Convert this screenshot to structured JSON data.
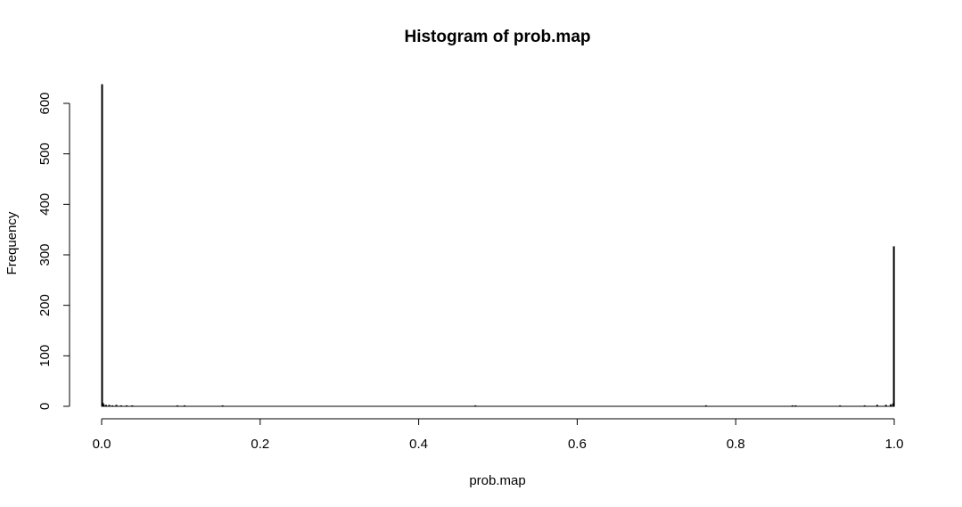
{
  "chart_data": {
    "type": "bar",
    "title": "Histogram of prob.map",
    "xlabel": "prob.map",
    "ylabel": "Frequency",
    "xlim": [
      0,
      1
    ],
    "ylim": [
      0,
      640
    ],
    "x_ticks": [
      "0.0",
      "0.2",
      "0.4",
      "0.6",
      "0.8",
      "1.0"
    ],
    "x_tick_values": [
      0,
      0.2,
      0.4,
      0.6,
      0.8,
      1.0
    ],
    "y_ticks": [
      "0",
      "100",
      "200",
      "300",
      "400",
      "500",
      "600"
    ],
    "y_tick_values": [
      0,
      100,
      200,
      300,
      400,
      500,
      600
    ],
    "bin_width": 0.001,
    "bins": [
      {
        "x": 0.0,
        "count": 637
      },
      {
        "x": 0.001,
        "count": 6
      },
      {
        "x": 0.002,
        "count": 3
      },
      {
        "x": 0.005,
        "count": 2
      },
      {
        "x": 0.009,
        "count": 2
      },
      {
        "x": 0.013,
        "count": 1
      },
      {
        "x": 0.018,
        "count": 2
      },
      {
        "x": 0.024,
        "count": 1
      },
      {
        "x": 0.031,
        "count": 1
      },
      {
        "x": 0.038,
        "count": 1
      },
      {
        "x": 0.095,
        "count": 1
      },
      {
        "x": 0.104,
        "count": 1
      },
      {
        "x": 0.152,
        "count": 1
      },
      {
        "x": 0.471,
        "count": 1
      },
      {
        "x": 0.762,
        "count": 1
      },
      {
        "x": 0.871,
        "count": 1
      },
      {
        "x": 0.875,
        "count": 1
      },
      {
        "x": 0.931,
        "count": 1
      },
      {
        "x": 0.962,
        "count": 1
      },
      {
        "x": 0.978,
        "count": 2
      },
      {
        "x": 0.989,
        "count": 2
      },
      {
        "x": 0.995,
        "count": 3
      },
      {
        "x": 0.998,
        "count": 5
      },
      {
        "x": 0.999,
        "count": 316
      }
    ],
    "grid": false,
    "legend": "none"
  }
}
